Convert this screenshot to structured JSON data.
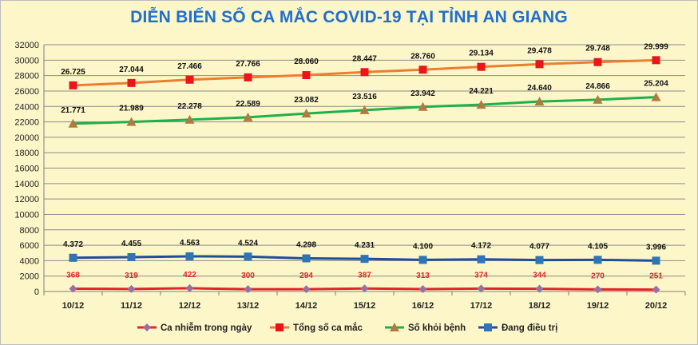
{
  "chart_data": {
    "type": "line",
    "title": "DIỄN BIẾN SỐ CA MẮC COVID-19 TẠI TỈNH AN GIANG",
    "categories": [
      "10/12",
      "11/12",
      "12/12",
      "13/12",
      "14/12",
      "15/12",
      "16/12",
      "17/12",
      "18/12",
      "19/12",
      "20/12"
    ],
    "ylim": [
      0,
      32000
    ],
    "yticks": [
      0,
      2000,
      4000,
      6000,
      8000,
      10000,
      12000,
      14000,
      16000,
      18000,
      20000,
      22000,
      24000,
      26000,
      28000,
      30000,
      32000
    ],
    "grid": true,
    "legend_position": "bottom",
    "series": [
      {
        "name": "Ca nhiễm trong ngày",
        "color": "#e0262b",
        "line_color": "#e0262b",
        "marker": "diamond",
        "marker_color": "#9b6fa0",
        "label_color": "#e0262b",
        "label_position": "above",
        "values": [
          368,
          319,
          422,
          300,
          294,
          387,
          313,
          374,
          344,
          270,
          251
        ],
        "labels": [
          "368",
          "319",
          "422",
          "300",
          "294",
          "387",
          "313",
          "374",
          "344",
          "270",
          "251"
        ]
      },
      {
        "name": "Tổng số ca mắc",
        "color": "#ed7d31",
        "line_color": "#ed7d31",
        "marker": "square",
        "marker_color": "#e8151b",
        "label_color": "#111111",
        "label_position": "above",
        "values": [
          26725,
          27044,
          27466,
          27766,
          28060,
          28447,
          28760,
          29134,
          29478,
          29748,
          29999
        ],
        "labels": [
          "26.725",
          "27.044",
          "27.466",
          "27.766",
          "28.060",
          "28.447",
          "28.760",
          "29.134",
          "29.478",
          "29.748",
          "29.999"
        ]
      },
      {
        "name": "Số khỏi bệnh",
        "color": "#1db14b",
        "line_color": "#1db14b",
        "marker": "triangle",
        "marker_color": "#b07a40",
        "label_color": "#111111",
        "label_position": "above",
        "values": [
          21771,
          21989,
          22278,
          22589,
          23082,
          23516,
          23942,
          24221,
          24640,
          24866,
          25204
        ],
        "labels": [
          "21.771",
          "21.989",
          "22.278",
          "22.589",
          "23.082",
          "23.516",
          "23.942",
          "24.221",
          "24.640",
          "24.866",
          "25.204"
        ]
      },
      {
        "name": "Đang điều trị",
        "color": "#1f4e9a",
        "line_color": "#1f4e9a",
        "marker": "square",
        "marker_color": "#2e75b6",
        "label_color": "#111111",
        "label_position": "above",
        "values": [
          4372,
          4455,
          4563,
          4524,
          4298,
          4231,
          4100,
          4172,
          4077,
          4105,
          3996
        ],
        "labels": [
          "4.372",
          "4.455",
          "4.563",
          "4.524",
          "4.298",
          "4.231",
          "4.100",
          "4.172",
          "4.077",
          "4.105",
          "3.996"
        ]
      }
    ]
  }
}
